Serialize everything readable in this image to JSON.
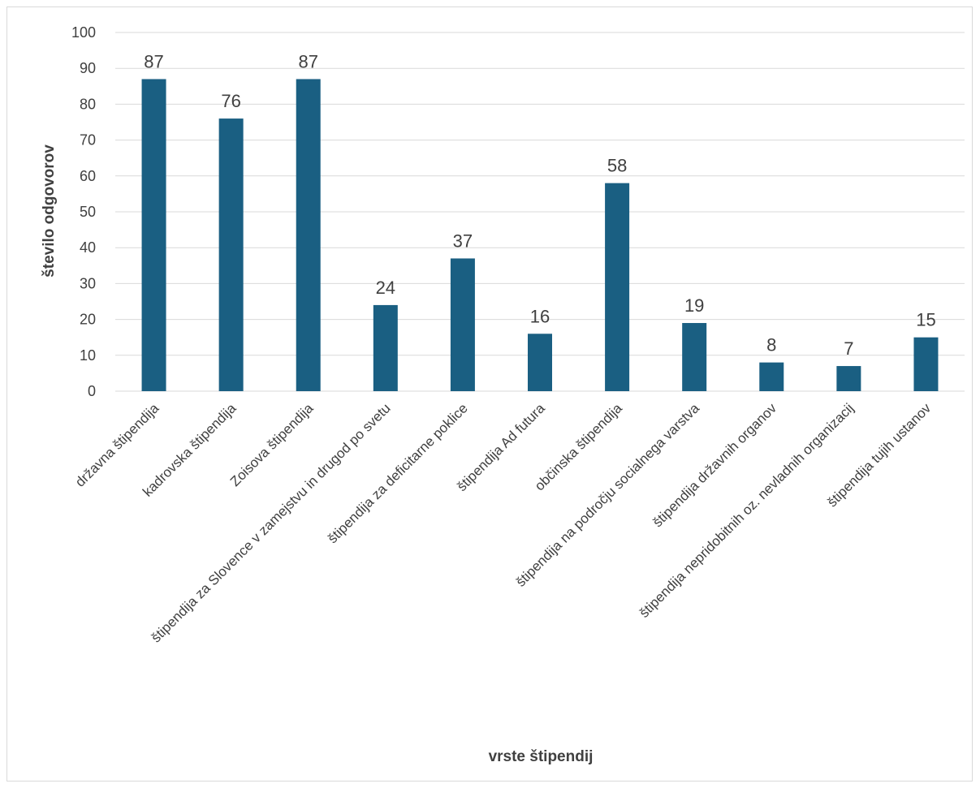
{
  "chart_data": {
    "type": "bar",
    "title": "",
    "xlabel": "vrste štipendij",
    "ylabel": "število odgovorov",
    "ylim": [
      0,
      100
    ],
    "yticks": [
      0,
      10,
      20,
      30,
      40,
      50,
      60,
      70,
      80,
      90,
      100
    ],
    "grid": true,
    "legend": "none",
    "color": "#1a5f82",
    "categories": [
      "državna štipendija",
      "kadrovska štipendija",
      "Zoisova štipendija",
      "štipendija za Slovence v zamejstvu in drugod po svetu",
      "štipendija za deficitarne poklice",
      "štipendija Ad futura",
      "občinska štipendija",
      "štipendija na področju socialnega varstva",
      "štipendija državnih organov",
      "štipendija nepridobitnih oz. nevladnih organizacij",
      "štipendija tujih ustanov"
    ],
    "values": [
      87,
      76,
      87,
      24,
      37,
      16,
      58,
      19,
      8,
      7,
      15
    ]
  }
}
